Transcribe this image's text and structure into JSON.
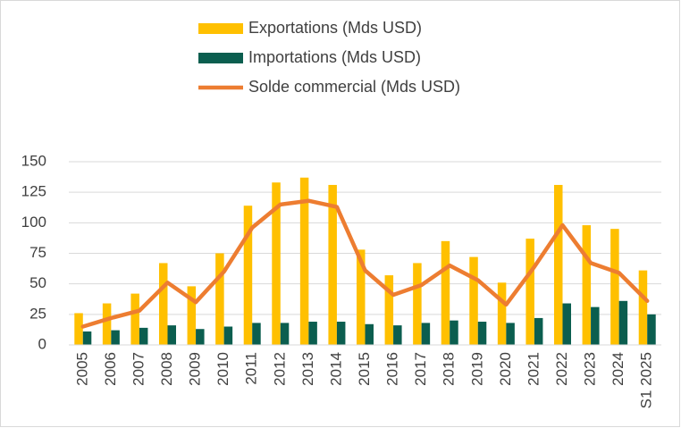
{
  "chart_data": {
    "type": "bar_line",
    "categories": [
      "2005",
      "2006",
      "2007",
      "2008",
      "2009",
      "2010",
      "2011",
      "2012",
      "2013",
      "2014",
      "2015",
      "2016",
      "2017",
      "2018",
      "2019",
      "2020",
      "2021",
      "2022",
      "2023",
      "2024",
      "S1 2025"
    ],
    "series": [
      {
        "name": "Exportations (Mds USD)",
        "type": "bar",
        "color": "#ffc000",
        "values": [
          26,
          34,
          42,
          67,
          48,
          75,
          114,
          133,
          137,
          131,
          78,
          57,
          67,
          85,
          72,
          51,
          87,
          131,
          98,
          95,
          61
        ]
      },
      {
        "name": "Importations (Mds USD)",
        "type": "bar",
        "color": "#0b5e4f",
        "values": [
          11,
          12,
          14,
          16,
          13,
          15,
          18,
          18,
          19,
          19,
          17,
          16,
          18,
          20,
          19,
          18,
          22,
          34,
          31,
          36,
          25
        ]
      },
      {
        "name": "Solde commercial (Mds USD)",
        "type": "line",
        "color": "#ed7d31",
        "values": [
          15,
          22,
          28,
          51,
          35,
          60,
          96,
          115,
          118,
          113,
          61,
          41,
          49,
          65,
          53,
          33,
          64,
          98,
          67,
          59,
          36
        ]
      }
    ],
    "ylim": [
      0,
      150
    ],
    "yticks": [
      0,
      25,
      50,
      75,
      100,
      125,
      150
    ],
    "grid": true,
    "legend": "top"
  }
}
